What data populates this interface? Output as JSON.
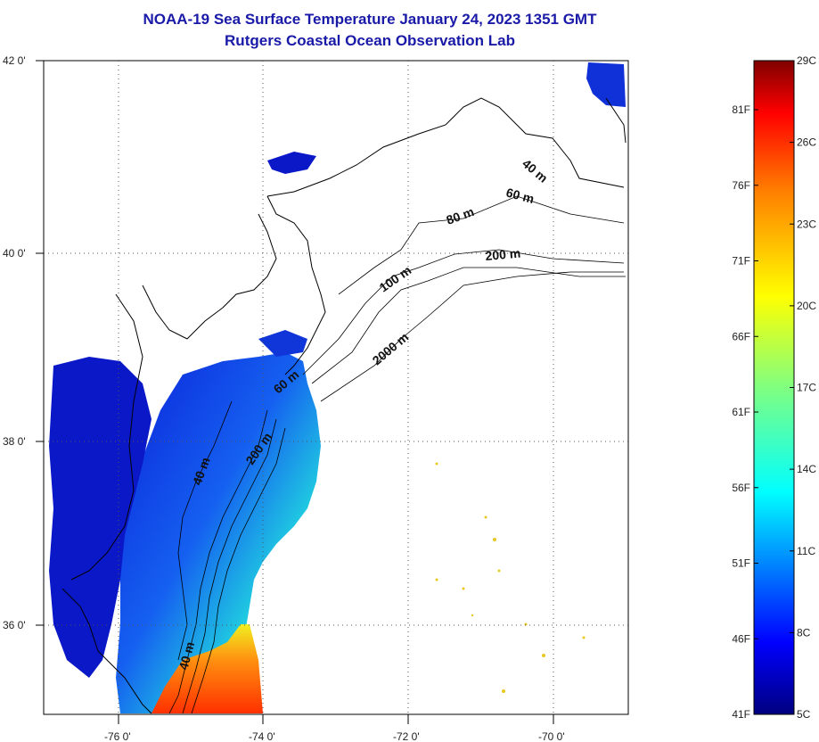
{
  "title": "NOAA-19 Sea Surface Temperature January 24, 2023 1351 GMT",
  "subtitle": "Rutgers Coastal Ocean Observation Lab",
  "axes": {
    "lon_labels": [
      "-76 0'",
      "-74 0'",
      "-72 0'",
      "-70 0'"
    ],
    "lat_labels": [
      "42 0'",
      "40 0'",
      "38 0'",
      "36 0'"
    ]
  },
  "contour_labels": [
    "40 m",
    "60 m",
    "80 m",
    "200 m",
    "100 m",
    "2000 m",
    "60 m",
    "200 m",
    "40 m",
    "40 m"
  ],
  "colorbar": {
    "celsius": [
      "29C",
      "26C",
      "23C",
      "20C",
      "17C",
      "14C",
      "11C",
      "8C",
      "5C"
    ],
    "fahrenheit": [
      "81F",
      "76F",
      "71F",
      "66F",
      "61F",
      "56F",
      "51F",
      "46F",
      "41F"
    ],
    "colors": [
      "#7f0000",
      "#ff0000",
      "#ff7f00",
      "#ffff00",
      "#80ff80",
      "#00ffff",
      "#0080ff",
      "#0000ff",
      "#00007f"
    ]
  },
  "colors": {
    "title": "#1a1aa8",
    "land_outline": "#000000",
    "background": "#ffffff"
  }
}
